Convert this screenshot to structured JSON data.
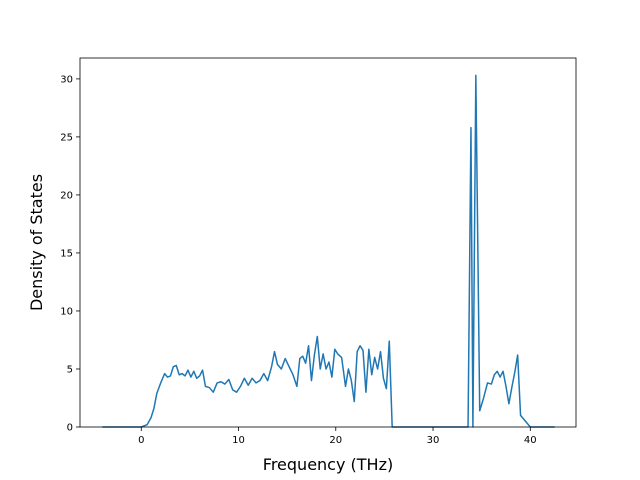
{
  "chart_data": {
    "type": "line",
    "title": "",
    "xlabel": "Frequency (THz)",
    "ylabel": "Density of States",
    "xlim": [
      -6.3,
      44.7
    ],
    "ylim": [
      0,
      31.8
    ],
    "xticks": [
      0,
      10,
      20,
      30,
      40
    ],
    "yticks": [
      0,
      5,
      10,
      15,
      20,
      25,
      30
    ],
    "grid": false,
    "legend": "none",
    "series": [
      {
        "color": "#1f77b4",
        "x": [
          -4.0,
          -2.0,
          0.0,
          0.6,
          1.0,
          1.3,
          1.6,
          2.0,
          2.4,
          2.7,
          3.0,
          3.3,
          3.6,
          3.9,
          4.2,
          4.5,
          4.8,
          5.1,
          5.4,
          5.7,
          6.0,
          6.3,
          6.6,
          7.0,
          7.4,
          7.8,
          8.2,
          8.6,
          9.0,
          9.4,
          9.8,
          10.2,
          10.6,
          11.0,
          11.4,
          11.8,
          12.2,
          12.6,
          13.0,
          13.4,
          13.7,
          14.0,
          14.4,
          14.8,
          15.2,
          15.6,
          16.0,
          16.3,
          16.6,
          16.9,
          17.2,
          17.5,
          17.8,
          18.1,
          18.4,
          18.7,
          19.0,
          19.3,
          19.6,
          19.9,
          20.2,
          20.6,
          21.0,
          21.3,
          21.6,
          21.9,
          22.2,
          22.5,
          22.8,
          23.1,
          23.4,
          23.7,
          24.0,
          24.3,
          24.6,
          24.9,
          25.2,
          25.5,
          25.8,
          26.5,
          30.0,
          33.0,
          33.6,
          33.9,
          34.1,
          34.4,
          34.8,
          35.2,
          35.6,
          36.0,
          36.3,
          36.6,
          36.9,
          37.2,
          37.5,
          37.8,
          38.1,
          38.4,
          38.7,
          39.0,
          40.0,
          42.5
        ],
        "y": [
          0,
          0,
          0,
          0.2,
          0.8,
          1.6,
          2.9,
          3.8,
          4.6,
          4.3,
          4.4,
          5.2,
          5.3,
          4.5,
          4.6,
          4.4,
          4.9,
          4.3,
          4.8,
          4.2,
          4.4,
          4.9,
          3.5,
          3.4,
          3.0,
          3.8,
          3.9,
          3.7,
          4.1,
          3.2,
          3.0,
          3.5,
          4.2,
          3.6,
          4.2,
          3.8,
          4.0,
          4.6,
          4.0,
          5.2,
          6.5,
          5.4,
          5.0,
          5.9,
          5.2,
          4.5,
          3.5,
          5.9,
          6.1,
          5.5,
          7.0,
          4.0,
          6.2,
          7.8,
          5.0,
          6.3,
          5.0,
          5.6,
          4.3,
          6.7,
          6.3,
          6.0,
          3.5,
          5.0,
          4.0,
          2.2,
          6.5,
          7.0,
          6.6,
          3.0,
          6.7,
          4.5,
          6.0,
          5.0,
          6.5,
          4.2,
          3.3,
          7.4,
          0,
          0,
          0,
          0,
          0,
          25.8,
          0,
          30.3,
          1.4,
          2.5,
          3.8,
          3.7,
          4.5,
          4.8,
          4.3,
          4.8,
          3.5,
          2.0,
          3.4,
          4.7,
          6.2,
          1.0,
          0,
          0
        ]
      }
    ]
  }
}
